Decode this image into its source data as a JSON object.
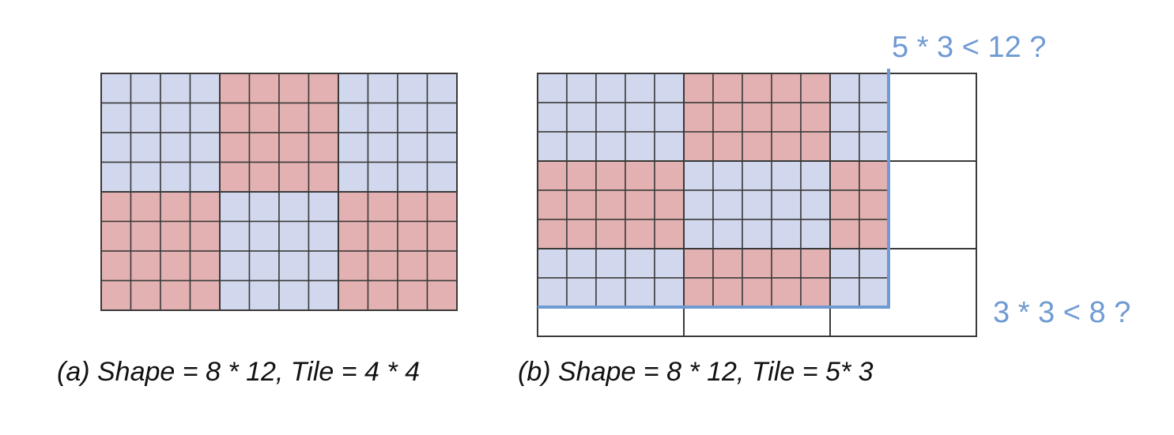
{
  "colors": {
    "blue": "#d1d7ec",
    "red": "#e3b1b1",
    "grid": "#3a3a3a",
    "accent": "#6f9ad3"
  },
  "panel_a": {
    "rows": 8,
    "cols": 12,
    "tile_rows": 4,
    "tile_cols": 4,
    "caption": "(a) Shape = 8 * 12, Tile = 4 * 4"
  },
  "panel_b": {
    "rows": 8,
    "cols": 12,
    "tile_rows": 3,
    "tile_cols": 5,
    "padded_rows": 9,
    "padded_cols": 15,
    "caption": "(b) Shape = 8 * 12, Tile = 5* 3",
    "note_cols": "5 * 3 < 12 ?",
    "note_rows": "3 * 3 < 8 ?"
  }
}
